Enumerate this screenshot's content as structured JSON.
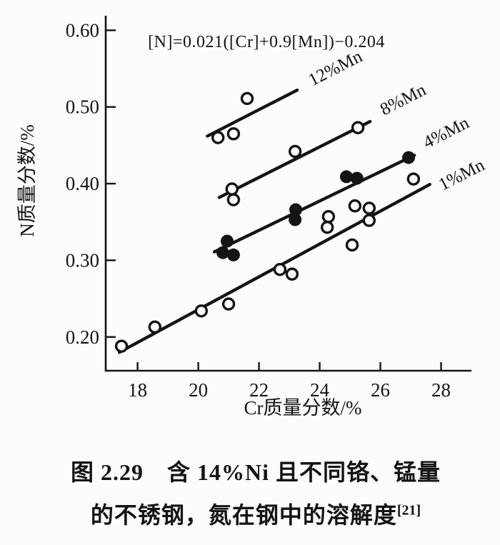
{
  "colors": {
    "ink": "#141414",
    "background": "#fcfcfc"
  },
  "figure": {
    "formula": "[N]=0.021([Cr]+0.9[Mn])−0.204",
    "x_axis_title": "Cr质量分数/%",
    "y_axis_title": "N质量分数/%",
    "caption_line1": "图 2.29　含 14%Ni 且不同铬、锰量",
    "caption_line2": "的不锈钢，氮在钢中的溶解度",
    "caption_ref": "[21]"
  },
  "chart_data": {
    "type": "scatter",
    "title": "",
    "xlabel": "Cr质量分数/%",
    "ylabel": "N质量分数/%",
    "annotation": "[N]=0.021([Cr]+0.9[Mn])−0.204",
    "xlim": [
      16.95,
      29.0
    ],
    "ylim": [
      0.156,
      0.619
    ],
    "grid": false,
    "x_ticks": [
      {
        "v": 18,
        "label": "18"
      },
      {
        "v": 20,
        "label": "20"
      },
      {
        "v": 22,
        "label": "22"
      },
      {
        "v": 24,
        "label": "24"
      },
      {
        "v": 26,
        "label": "26"
      },
      {
        "v": 28,
        "label": "28"
      }
    ],
    "y_ticks": [
      {
        "v": 0.2,
        "label": "0.20"
      },
      {
        "v": 0.3,
        "label": "0.30"
      },
      {
        "v": 0.4,
        "label": "0.40"
      },
      {
        "v": 0.5,
        "label": "0.50"
      },
      {
        "v": 0.6,
        "label": "0.60"
      }
    ],
    "series": [
      {
        "name": "12%Mn",
        "marker": "open",
        "points": [
          [
            20.65,
            0.46
          ],
          [
            21.16,
            0.465
          ],
          [
            21.61,
            0.511
          ]
        ],
        "fit_line": {
          "x1": 20.3,
          "y1": 0.462,
          "x2": 23.26,
          "y2": 0.522
        },
        "label": {
          "text": "12%Mn",
          "x": 24.6,
          "y": 0.544,
          "angle": -27
        }
      },
      {
        "name": "8%Mn",
        "marker": "open",
        "points": [
          [
            21.11,
            0.393
          ],
          [
            21.16,
            0.379
          ],
          [
            23.19,
            0.442
          ],
          [
            25.26,
            0.473
          ]
        ],
        "fit_line": {
          "x1": 20.69,
          "y1": 0.382,
          "x2": 25.66,
          "y2": 0.481
        },
        "label": {
          "text": "8%Mn",
          "x": 26.83,
          "y": 0.503,
          "angle": -27
        }
      },
      {
        "name": "4%Mn",
        "marker": "filled",
        "points": [
          [
            20.95,
            0.325
          ],
          [
            20.81,
            0.31
          ],
          [
            21.16,
            0.307
          ],
          [
            23.21,
            0.366
          ],
          [
            23.19,
            0.353
          ],
          [
            24.88,
            0.409
          ],
          [
            25.23,
            0.407
          ],
          [
            26.93,
            0.434
          ]
        ],
        "fit_line": {
          "x1": 20.53,
          "y1": 0.311,
          "x2": 27.12,
          "y2": 0.437
        },
        "label": {
          "text": "4%Mn",
          "x": 28.25,
          "y": 0.46,
          "angle": -27
        }
      },
      {
        "name": "1%Mn",
        "marker": "open",
        "points": [
          [
            17.47,
            0.188
          ],
          [
            18.57,
            0.213
          ],
          [
            20.1,
            0.234
          ],
          [
            21.0,
            0.243
          ],
          [
            22.69,
            0.288
          ],
          [
            23.09,
            0.282
          ],
          [
            24.29,
            0.357
          ],
          [
            24.25,
            0.343
          ],
          [
            25.07,
            0.32
          ],
          [
            25.16,
            0.371
          ],
          [
            25.63,
            0.368
          ],
          [
            25.63,
            0.352
          ],
          [
            27.09,
            0.406
          ]
        ],
        "fit_line": {
          "x1": 17.4,
          "y1": 0.18,
          "x2": 27.63,
          "y2": 0.399
        },
        "label": {
          "text": "1%Mn",
          "x": 28.76,
          "y": 0.405,
          "angle": -27
        }
      }
    ],
    "legend_position": "none",
    "marker_styles": {
      "open": "white-filled circle, black ring",
      "filled": "solid black circle"
    }
  }
}
